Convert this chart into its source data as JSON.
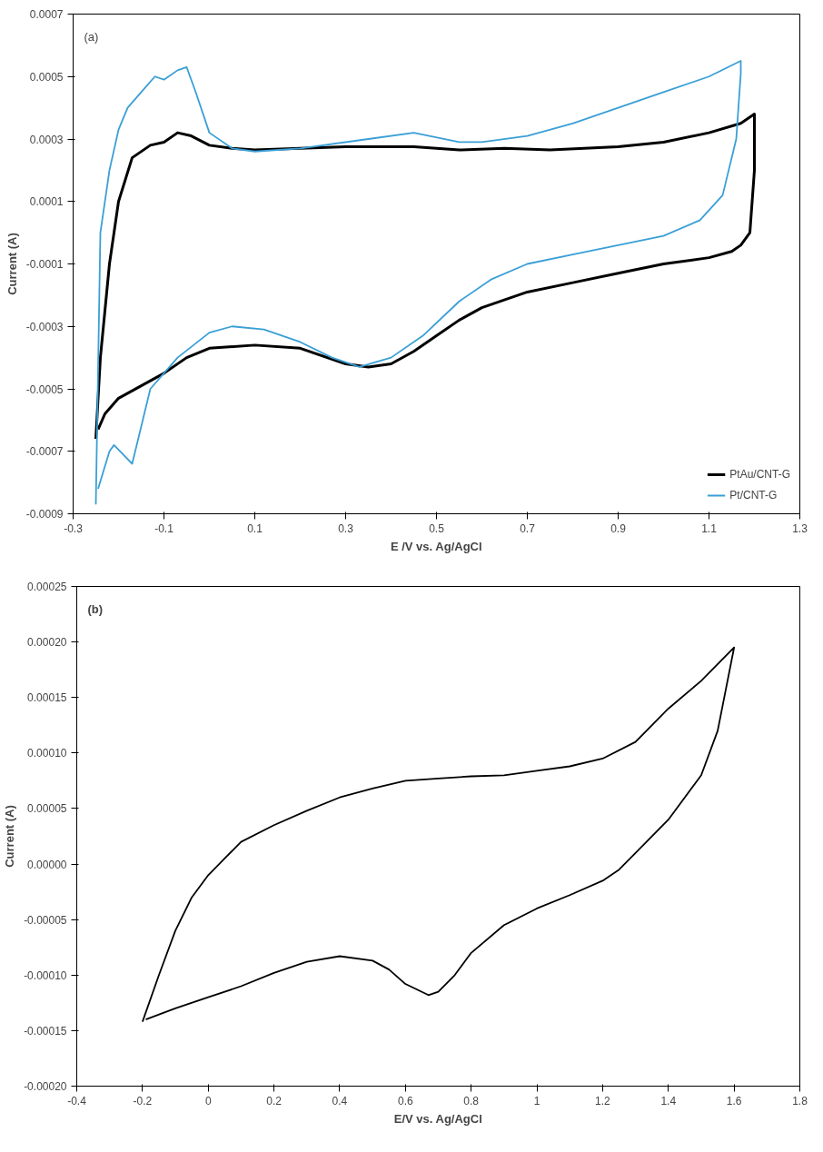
{
  "chart_data": [
    {
      "type": "line",
      "xlabel": "E /V vs. Ag/AgCl",
      "ylabel": "Current (A)",
      "annotations": [
        "(a)"
      ],
      "xlim": [
        -0.3,
        1.3
      ],
      "xticks": [
        -0.3,
        -0.1,
        0.1,
        0.3,
        0.5,
        0.7,
        0.9,
        1.1,
        1.3
      ],
      "ylim": [
        -0.0009,
        0.0007
      ],
      "yticks": [
        -0.0009,
        -0.0007,
        -0.0005,
        -0.0003,
        -0.0001,
        0.0001,
        0.0003,
        0.0005,
        0.0007
      ],
      "grid": false,
      "legend": "bottom right",
      "series": [
        {
          "name": "PtAu/CNT-G",
          "color": "#000000",
          "x": [
            -0.25,
            -0.24,
            -0.22,
            -0.2,
            -0.17,
            -0.13,
            -0.1,
            -0.07,
            -0.04,
            0,
            0.05,
            0.1,
            0.2,
            0.3,
            0.45,
            0.55,
            0.65,
            0.75,
            0.9,
            1.0,
            1.1,
            1.17,
            1.2,
            1.2,
            1.19,
            1.17,
            1.15,
            1.1,
            1.0,
            0.9,
            0.8,
            0.7,
            0.6,
            0.55,
            0.5,
            0.45,
            0.4,
            0.35,
            0.3,
            0.2,
            0.1,
            0,
            -0.05,
            -0.1,
            -0.15,
            -0.2,
            -0.23,
            -0.245
          ],
          "values": [
            -0.00066,
            -0.0004,
            -0.0001,
            0.0001,
            0.00024,
            0.00028,
            0.00029,
            0.00032,
            0.00031,
            0.00028,
            0.00027,
            0.000265,
            0.00027,
            0.000275,
            0.000275,
            0.000265,
            0.00027,
            0.000265,
            0.000275,
            0.00029,
            0.00032,
            0.00035,
            0.00038,
            0.0002,
            0.0,
            -4e-05,
            -6e-05,
            -8e-05,
            -0.0001,
            -0.00013,
            -0.00016,
            -0.00019,
            -0.00024,
            -0.00028,
            -0.00033,
            -0.00038,
            -0.00042,
            -0.00043,
            -0.00042,
            -0.00037,
            -0.00036,
            -0.00037,
            -0.0004,
            -0.00045,
            -0.00049,
            -0.00053,
            -0.00058,
            -0.00063
          ]
        },
        {
          "name": "Pt/CNT-G",
          "color": "#3a9fd6",
          "x": [
            -0.25,
            -0.24,
            -0.22,
            -0.2,
            -0.18,
            -0.15,
            -0.12,
            -0.1,
            -0.07,
            -0.05,
            -0.03,
            0,
            0.05,
            0.1,
            0.2,
            0.35,
            0.45,
            0.55,
            0.6,
            0.7,
            0.8,
            0.9,
            1.0,
            1.1,
            1.17,
            1.17,
            1.16,
            1.13,
            1.08,
            1.0,
            0.9,
            0.8,
            0.7,
            0.62,
            0.55,
            0.47,
            0.4,
            0.33,
            0.27,
            0.2,
            0.12,
            0.05,
            0,
            -0.07,
            -0.13,
            -0.17,
            -0.21,
            -0.22,
            -0.245
          ],
          "values": [
            -0.00087,
            0.0,
            0.0002,
            0.00033,
            0.0004,
            0.00045,
            0.0005,
            0.00049,
            0.00052,
            0.00053,
            0.00045,
            0.00032,
            0.00027,
            0.00026,
            0.00027,
            0.0003,
            0.00032,
            0.00029,
            0.00029,
            0.00031,
            0.00035,
            0.0004,
            0.00045,
            0.0005,
            0.00055,
            0.00051,
            0.0003,
            0.00012,
            4e-05,
            -1e-05,
            -4e-05,
            -7e-05,
            -0.0001,
            -0.00015,
            -0.00022,
            -0.00033,
            -0.0004,
            -0.00043,
            -0.0004,
            -0.00035,
            -0.00031,
            -0.0003,
            -0.00032,
            -0.0004,
            -0.0005,
            -0.00074,
            -0.00068,
            -0.0007,
            -0.00082
          ]
        }
      ]
    },
    {
      "type": "line",
      "xlabel": "E/V vs. Ag/AgCl",
      "ylabel": "Current (A)",
      "annotations": [
        "(b)"
      ],
      "xlim": [
        -0.4,
        1.8
      ],
      "xticks": [
        -0.4,
        -0.2,
        0,
        0.2,
        0.4,
        0.6,
        0.8,
        1,
        1.2,
        1.4,
        1.6,
        1.8
      ],
      "ylim": [
        -0.0002,
        0.00025
      ],
      "yticks": [
        {
          "value": -0.0002,
          "label": "-0.00020"
        },
        {
          "value": -0.00015,
          "label": "-0.00015"
        },
        {
          "value": -0.0001,
          "label": "-0.00010"
        },
        {
          "value": -5e-05,
          "label": "-0.00005"
        },
        {
          "value": 0,
          "label": "0.00000"
        },
        {
          "value": 5e-05,
          "label": "0.00005"
        },
        {
          "value": 0.0001,
          "label": "0.00010"
        },
        {
          "value": 0.00015,
          "label": "0.00015"
        },
        {
          "value": 0.0002,
          "label": "0.00020"
        },
        {
          "value": 0.00025,
          "label": "0.00025"
        }
      ],
      "grid": false,
      "series": [
        {
          "color": "#000000",
          "x": [
            -0.2,
            -0.15,
            -0.1,
            -0.05,
            0,
            0.05,
            0.1,
            0.2,
            0.3,
            0.4,
            0.5,
            0.6,
            0.7,
            0.8,
            0.9,
            1.0,
            1.1,
            1.2,
            1.3,
            1.4,
            1.5,
            1.6,
            1.55,
            1.5,
            1.4,
            1.3,
            1.25,
            1.2,
            1.1,
            1.0,
            0.9,
            0.8,
            0.75,
            0.7,
            0.67,
            0.6,
            0.55,
            0.5,
            0.4,
            0.3,
            0.2,
            0.1,
            0,
            -0.1,
            -0.19
          ],
          "values": [
            -0.000142,
            -0.0001,
            -6e-05,
            -3e-05,
            -1e-05,
            5e-06,
            2e-05,
            3.5e-05,
            4.8e-05,
            6e-05,
            6.8e-05,
            7.5e-05,
            7.7e-05,
            7.9e-05,
            8e-05,
            8.4e-05,
            8.8e-05,
            9.5e-05,
            0.00011,
            0.00014,
            0.000165,
            0.000195,
            0.00012,
            8e-05,
            4e-05,
            1e-05,
            -5e-06,
            -1.5e-05,
            -2.8e-05,
            -4e-05,
            -5.5e-05,
            -8e-05,
            -0.0001,
            -0.000115,
            -0.000118,
            -0.000108,
            -9.5e-05,
            -8.7e-05,
            -8.3e-05,
            -8.8e-05,
            -9.8e-05,
            -0.00011,
            -0.00012,
            -0.00013,
            -0.00014
          ]
        }
      ]
    }
  ]
}
